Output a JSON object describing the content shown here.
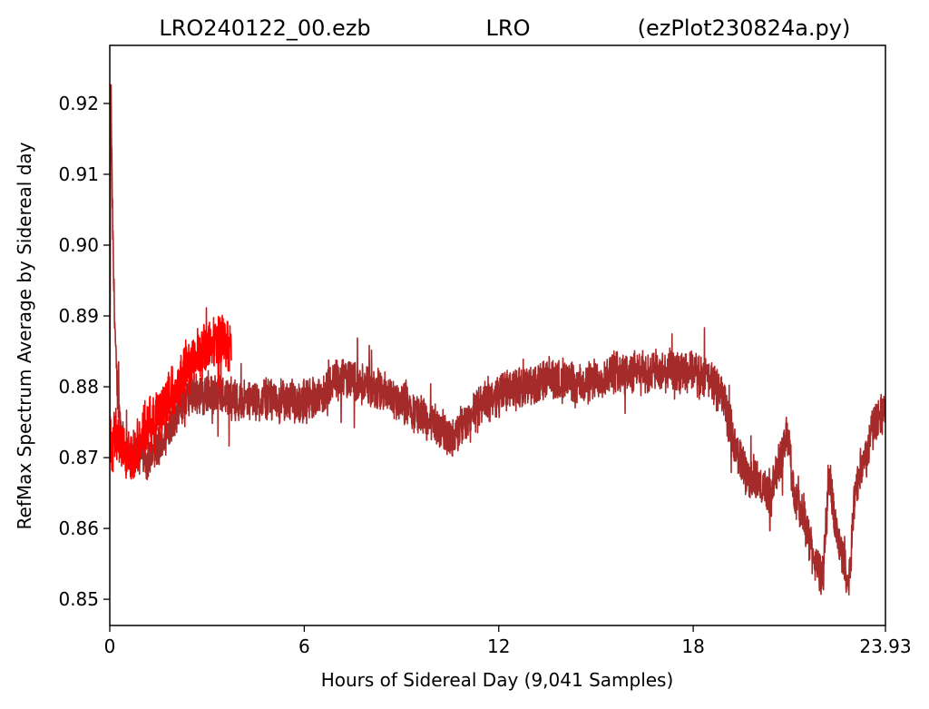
{
  "chart_data": {
    "type": "line",
    "title_parts": [
      "LRO240122_00.ezb",
      "LRO",
      "(ezPlot230824a.py)"
    ],
    "xlabel": "Hours of Sidereal Day  (9,041 Samples)",
    "ylabel": "RefMax Spectrum Average by Sidereal day",
    "xlim": [
      0,
      23.93
    ],
    "ylim": [
      0.8463,
      0.9282
    ],
    "xticks": [
      0,
      6,
      12,
      18,
      23.93
    ],
    "xtick_labels": [
      "0",
      "6",
      "12",
      "18",
      "23.93"
    ],
    "yticks": [
      0.85,
      0.86,
      0.87,
      0.88,
      0.89,
      0.9,
      0.91,
      0.92
    ],
    "ytick_labels": [
      "0.85",
      "0.86",
      "0.87",
      "0.88",
      "0.89",
      "0.90",
      "0.91",
      "0.92"
    ],
    "grid": false,
    "series": [
      {
        "color": "#a52a2a",
        "noise": 0.0035,
        "points": [
          [
            0.0,
            0.87
          ],
          [
            0.03,
            0.925
          ],
          [
            0.08,
            0.905
          ],
          [
            0.12,
            0.895
          ],
          [
            0.2,
            0.882
          ],
          [
            0.3,
            0.876
          ],
          [
            0.5,
            0.87
          ],
          [
            0.8,
            0.871
          ],
          [
            1.2,
            0.87
          ],
          [
            1.6,
            0.872
          ],
          [
            2.0,
            0.876
          ],
          [
            2.5,
            0.879
          ],
          [
            3.0,
            0.879
          ],
          [
            3.5,
            0.879
          ],
          [
            4.0,
            0.878
          ],
          [
            5.0,
            0.878
          ],
          [
            6.0,
            0.878
          ],
          [
            6.5,
            0.879
          ],
          [
            7.0,
            0.881
          ],
          [
            7.5,
            0.881
          ],
          [
            8.0,
            0.88
          ],
          [
            8.5,
            0.879
          ],
          [
            9.0,
            0.878
          ],
          [
            9.5,
            0.876
          ],
          [
            10.0,
            0.875
          ],
          [
            10.4,
            0.873
          ],
          [
            10.8,
            0.874
          ],
          [
            11.2,
            0.876
          ],
          [
            11.6,
            0.878
          ],
          [
            12.0,
            0.879
          ],
          [
            12.5,
            0.88
          ],
          [
            13.0,
            0.88
          ],
          [
            13.5,
            0.881
          ],
          [
            14.0,
            0.881
          ],
          [
            14.5,
            0.88
          ],
          [
            15.0,
            0.881
          ],
          [
            15.5,
            0.882
          ],
          [
            16.0,
            0.882
          ],
          [
            16.5,
            0.882
          ],
          [
            17.0,
            0.882
          ],
          [
            17.5,
            0.882
          ],
          [
            18.0,
            0.882
          ],
          [
            18.5,
            0.881
          ],
          [
            18.9,
            0.879
          ],
          [
            19.2,
            0.873
          ],
          [
            19.5,
            0.869
          ],
          [
            19.8,
            0.867
          ],
          [
            20.1,
            0.866
          ],
          [
            20.4,
            0.865
          ],
          [
            20.7,
            0.87
          ],
          [
            20.9,
            0.874
          ],
          [
            21.1,
            0.865
          ],
          [
            21.4,
            0.862
          ],
          [
            21.7,
            0.856
          ],
          [
            22.0,
            0.853
          ],
          [
            22.2,
            0.868
          ],
          [
            22.4,
            0.86
          ],
          [
            22.6,
            0.856
          ],
          [
            22.8,
            0.852
          ],
          [
            23.0,
            0.866
          ],
          [
            23.3,
            0.87
          ],
          [
            23.6,
            0.875
          ],
          [
            23.93,
            0.877
          ]
        ]
      },
      {
        "color": "#ff0000",
        "noise": 0.0045,
        "points": [
          [
            0.0,
            0.872
          ],
          [
            0.2,
            0.873
          ],
          [
            0.5,
            0.87
          ],
          [
            0.8,
            0.871
          ],
          [
            1.0,
            0.873
          ],
          [
            1.3,
            0.875
          ],
          [
            1.6,
            0.877
          ],
          [
            2.0,
            0.88
          ],
          [
            2.4,
            0.883
          ],
          [
            2.8,
            0.885
          ],
          [
            3.2,
            0.886
          ],
          [
            3.6,
            0.886
          ],
          [
            3.75,
            0.886
          ]
        ]
      }
    ]
  }
}
